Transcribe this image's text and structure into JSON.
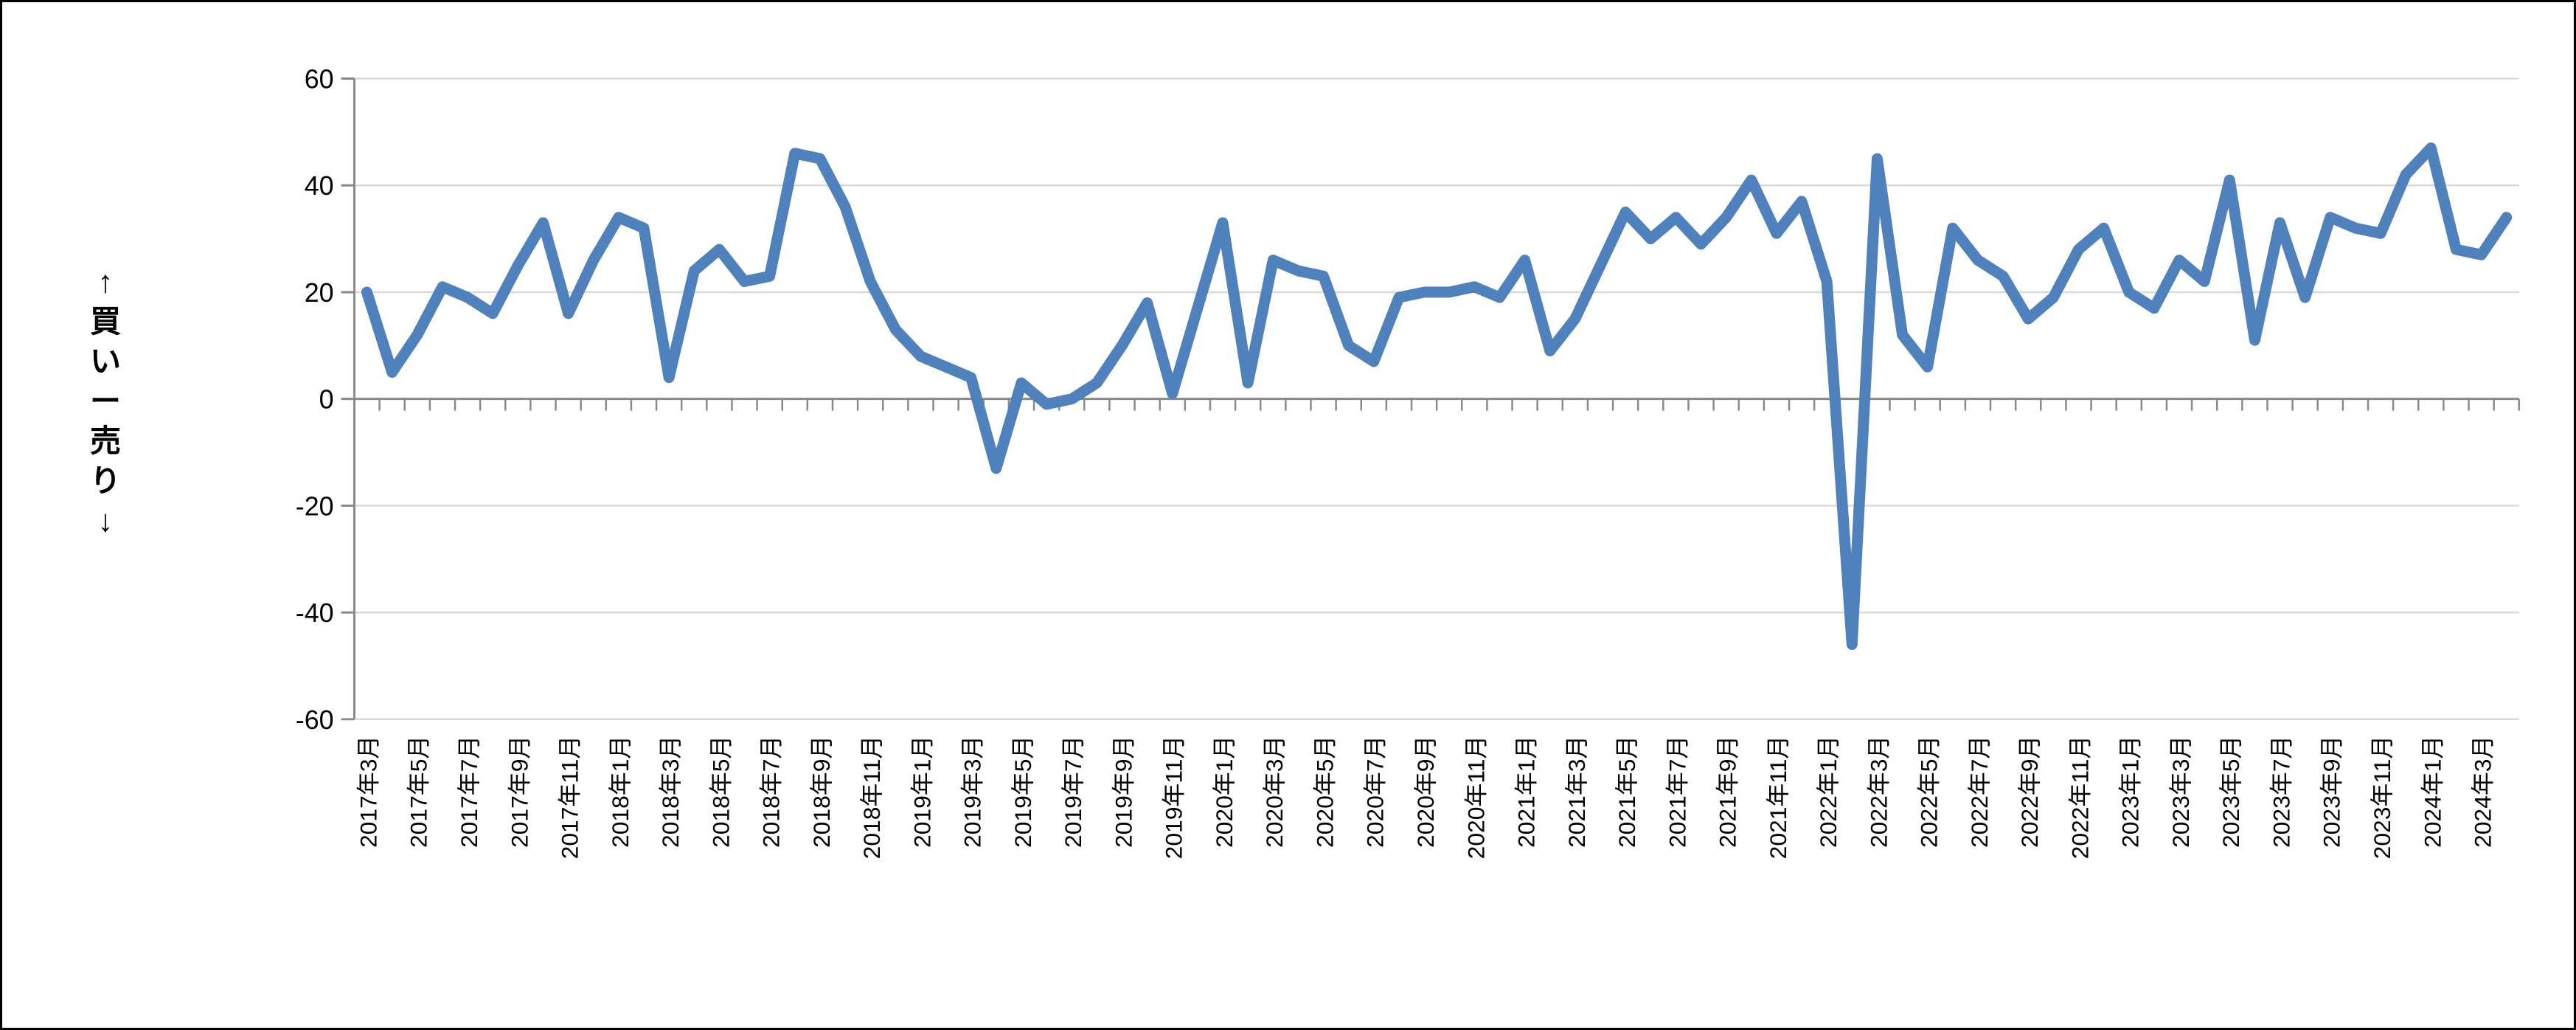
{
  "chart_data": {
    "type": "line",
    "title": "",
    "ylabel": "↑買い−売り↓",
    "ylabel_chars": [
      "↑",
      "買",
      "い",
      "ー",
      "売",
      "り",
      "↓"
    ],
    "ylim": [
      -60,
      60
    ],
    "y_ticks": [
      60,
      40,
      20,
      0,
      -20,
      -40,
      -60
    ],
    "x_label_every": 2,
    "grid": true,
    "legend_position": "none",
    "line_color": "#4F81BD",
    "axis_color": "#898989",
    "gridline_color": "#D9D9D9",
    "text_color": "#000000",
    "categories": [
      "2017年3月",
      "2017年4月",
      "2017年5月",
      "2017年6月",
      "2017年7月",
      "2017年8月",
      "2017年9月",
      "2017年10月",
      "2017年11月",
      "2017年12月",
      "2018年1月",
      "2018年2月",
      "2018年3月",
      "2018年4月",
      "2018年5月",
      "2018年6月",
      "2018年7月",
      "2018年8月",
      "2018年9月",
      "2018年10月",
      "2018年11月",
      "2018年12月",
      "2019年1月",
      "2019年2月",
      "2019年3月",
      "2019年4月",
      "2019年5月",
      "2019年6月",
      "2019年7月",
      "2019年8月",
      "2019年9月",
      "2019年10月",
      "2019年11月",
      "2019年12月",
      "2020年1月",
      "2020年2月",
      "2020年3月",
      "2020年4月",
      "2020年5月",
      "2020年6月",
      "2020年7月",
      "2020年8月",
      "2020年9月",
      "2020年10月",
      "2020年11月",
      "2020年12月",
      "2021年1月",
      "2021年2月",
      "2021年3月",
      "2021年4月",
      "2021年5月",
      "2021年6月",
      "2021年7月",
      "2021年8月",
      "2021年9月",
      "2021年10月",
      "2021年11月",
      "2021年12月",
      "2022年1月",
      "2022年2月",
      "2022年3月",
      "2022年4月",
      "2022年5月",
      "2022年6月",
      "2022年7月",
      "2022年8月",
      "2022年9月",
      "2022年10月",
      "2022年11月",
      "2022年12月",
      "2023年1月",
      "2023年2月",
      "2023年3月",
      "2023年4月",
      "2023年5月",
      "2023年6月",
      "2023年7月",
      "2023年8月",
      "2023年9月",
      "2023年10月",
      "2023年11月",
      "2023年12月",
      "2024年1月",
      "2024年2月",
      "2024年3月",
      "2024年4月"
    ],
    "values": [
      20,
      5,
      12,
      21,
      19,
      16,
      25,
      33,
      16,
      26,
      34,
      32,
      4,
      24,
      28,
      22,
      23,
      46,
      45,
      36,
      22,
      13,
      8,
      6,
      4,
      -13,
      3,
      -1,
      0,
      3,
      10,
      18,
      1,
      17,
      33,
      3,
      26,
      24,
      23,
      10,
      7,
      19,
      20,
      20,
      21,
      19,
      26,
      9,
      15,
      25,
      35,
      30,
      34,
      29,
      34,
      41,
      31,
      37,
      22,
      -46,
      45,
      12,
      6,
      32,
      26,
      23,
      15,
      19,
      28,
      32,
      20,
      17,
      26,
      22,
      41,
      11,
      33,
      19,
      34,
      32,
      31,
      42,
      47,
      28,
      27,
      34
    ]
  }
}
